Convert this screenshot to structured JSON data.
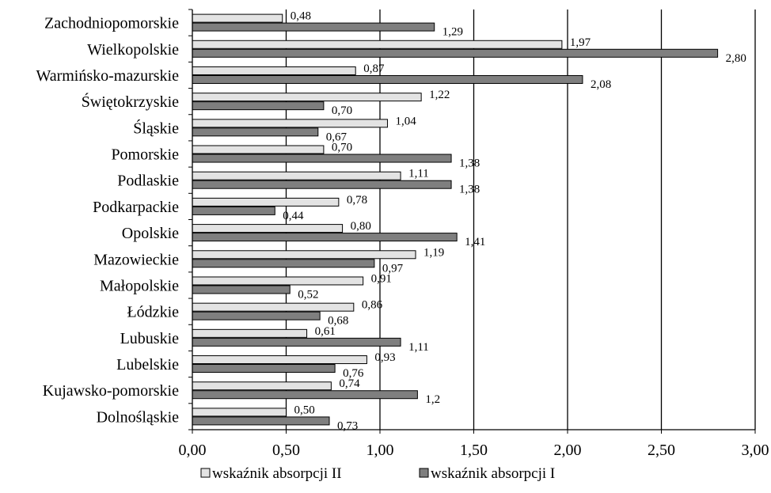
{
  "chart_data": {
    "type": "bar",
    "orientation": "horizontal",
    "categories": [
      "Zachodniopomorskie",
      "Wielkopolskie",
      "Warmińsko-mazurskie",
      "Świętokrzyskie",
      "Śląskie",
      "Pomorskie",
      "Podlaskie",
      "Podkarpackie",
      "Opolskie",
      "Mazowieckie",
      "Małopolskie",
      "Łódzkie",
      "Lubuskie",
      "Lubelskie",
      "Kujawsko-pomorskie",
      "Dolnośląskie"
    ],
    "series": [
      {
        "name": "wskaźnik absorpcji II",
        "color": "#e3e3e3",
        "values": [
          0.48,
          1.97,
          0.87,
          1.22,
          1.04,
          0.7,
          1.11,
          0.78,
          0.8,
          1.19,
          0.91,
          0.86,
          0.61,
          0.93,
          0.74,
          0.5
        ],
        "labels": [
          "0,48",
          "1,97",
          "0,87",
          "1,22",
          "1,04",
          "0,70",
          "1,11",
          "0,78",
          "0,80",
          "1,19",
          "0,91",
          "0,86",
          "0,61",
          "0,93",
          "0,74",
          "0,50"
        ]
      },
      {
        "name": "wskaźnik absorpcji I",
        "color": "#7f7f7f",
        "values": [
          1.29,
          2.8,
          2.08,
          0.7,
          0.67,
          1.38,
          1.38,
          0.44,
          1.41,
          0.97,
          0.52,
          0.68,
          1.11,
          0.76,
          1.2,
          0.73
        ],
        "labels": [
          "1,29",
          "2,80",
          "2,08",
          "0,70",
          "0,67",
          "1,38",
          "1,38",
          "0,44",
          "1,41",
          "0,97",
          "0,52",
          "0,68",
          "1,11",
          "0,76",
          "1,2",
          "0,73"
        ]
      }
    ],
    "x_ticks": [
      "0,00",
      "0,50",
      "1,00",
      "1,50",
      "2,00",
      "2,50",
      "3,00"
    ],
    "xlim": [
      0,
      3
    ],
    "grid": "vertical",
    "legend": "bottom"
  }
}
